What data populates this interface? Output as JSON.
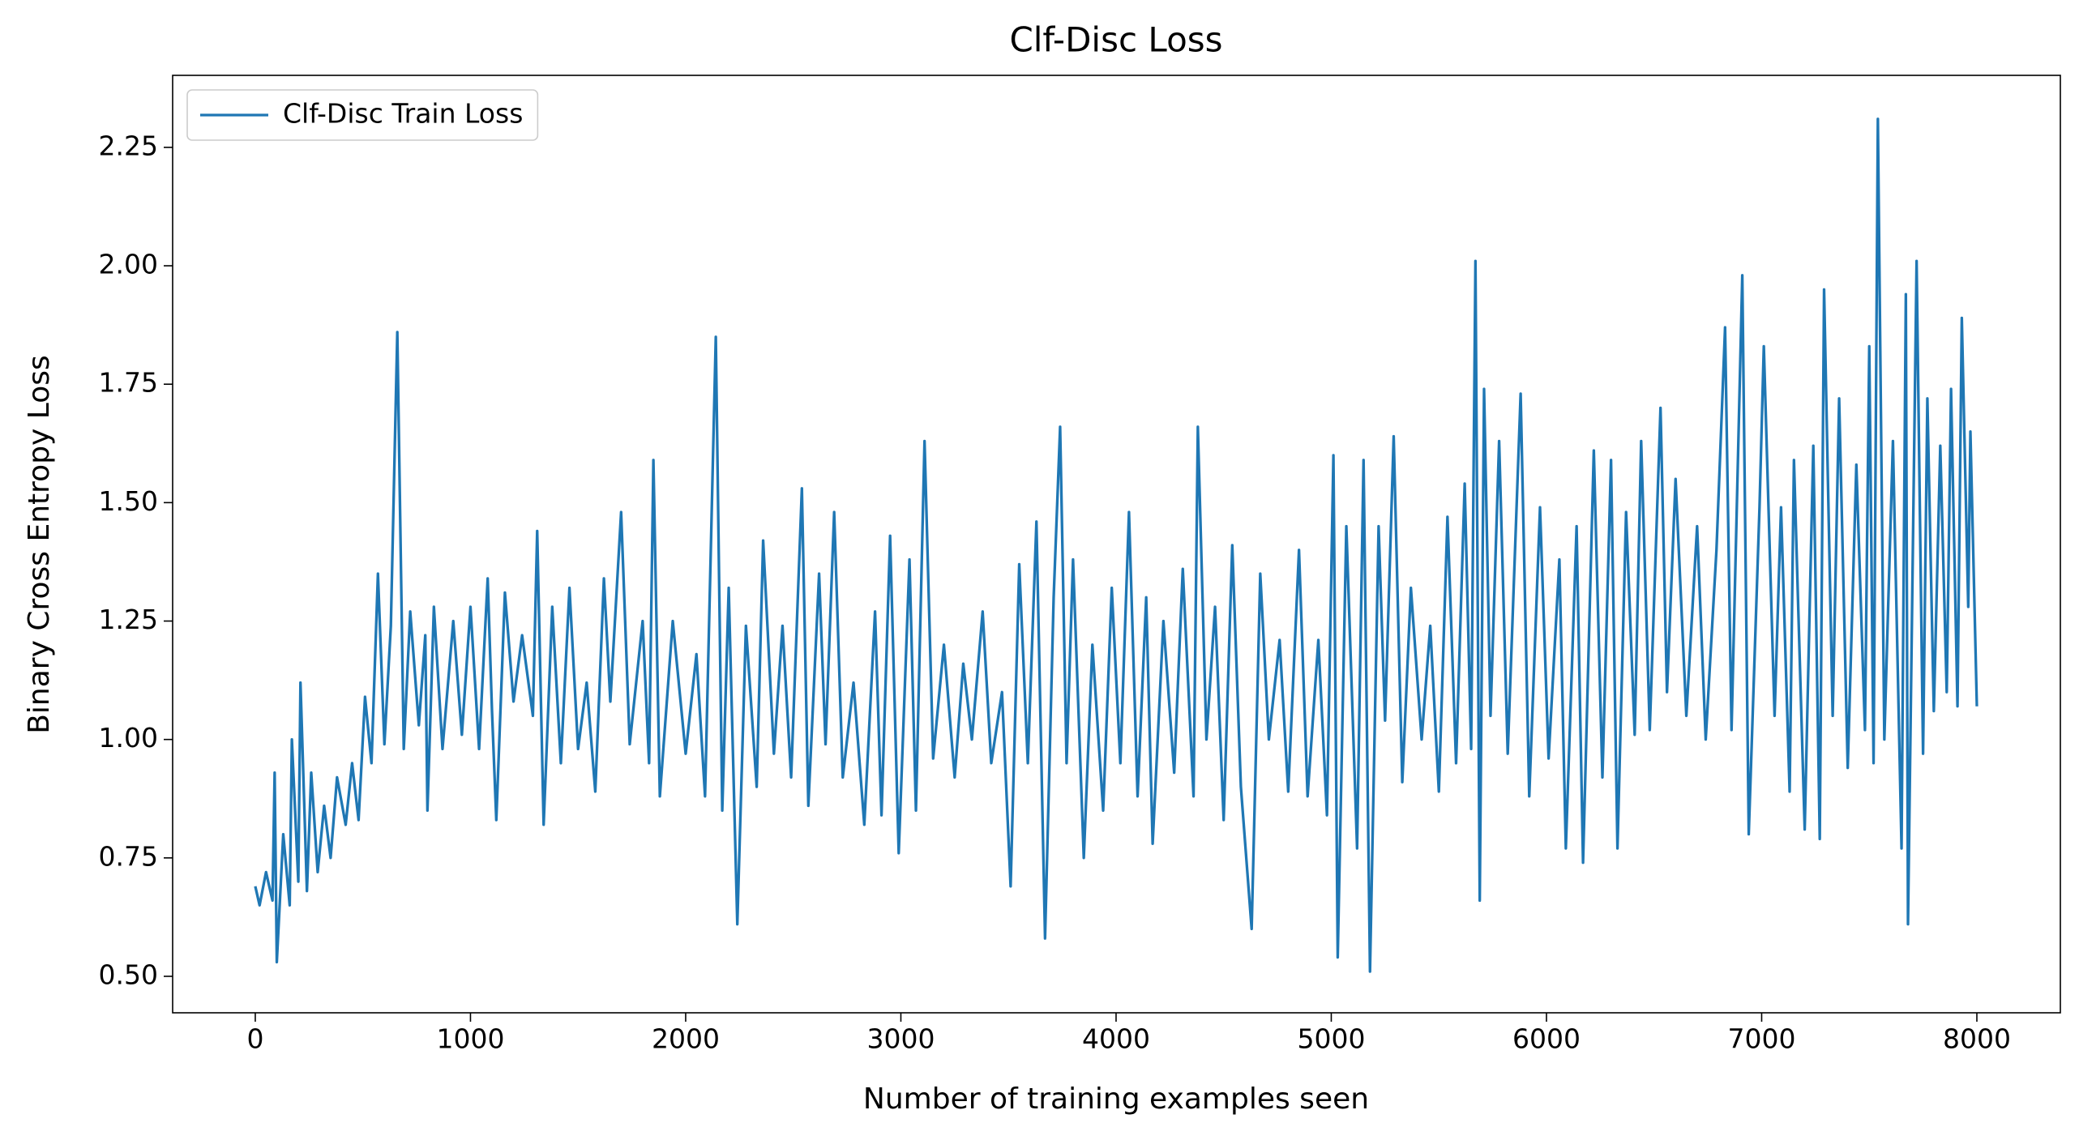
{
  "chart_data": {
    "type": "line",
    "title": "Clf-Disc Loss",
    "x_label": "Number of training examples seen",
    "y_label": "Binary Cross Entropy Loss",
    "xlim": [
      -384,
      8388
    ],
    "ylim": [
      0.423,
      2.402
    ],
    "xticks": [
      0,
      1000,
      2000,
      3000,
      4000,
      5000,
      6000,
      7000,
      8000
    ],
    "yticks": [
      {
        "value": 0.5,
        "label": "0.50"
      },
      {
        "value": 0.75,
        "label": "0.75"
      },
      {
        "value": 1.0,
        "label": "1.00"
      },
      {
        "value": 1.25,
        "label": "1.25"
      },
      {
        "value": 1.5,
        "label": "1.50"
      },
      {
        "value": 1.75,
        "label": "1.75"
      },
      {
        "value": 2.0,
        "label": "2.00"
      },
      {
        "value": 2.25,
        "label": "2.25"
      }
    ],
    "legend_position": "upper left",
    "grid": false,
    "x": [
      0,
      20,
      50,
      80,
      90,
      100,
      130,
      160,
      170,
      200,
      210,
      240,
      260,
      290,
      320,
      350,
      380,
      420,
      450,
      480,
      510,
      540,
      570,
      600,
      630,
      660,
      690,
      720,
      760,
      790,
      800,
      830,
      870,
      920,
      960,
      1000,
      1040,
      1080,
      1100,
      1120,
      1160,
      1200,
      1240,
      1290,
      1310,
      1340,
      1380,
      1420,
      1460,
      1500,
      1540,
      1580,
      1620,
      1650,
      1700,
      1740,
      1800,
      1830,
      1850,
      1880,
      1940,
      2000,
      2050,
      2090,
      2140,
      2170,
      2200,
      2240,
      2280,
      2330,
      2360,
      2410,
      2450,
      2490,
      2540,
      2570,
      2620,
      2650,
      2690,
      2730,
      2780,
      2830,
      2880,
      2910,
      2950,
      2990,
      3040,
      3070,
      3110,
      3150,
      3200,
      3250,
      3290,
      3330,
      3380,
      3420,
      3470,
      3510,
      3550,
      3590,
      3630,
      3670,
      3710,
      3740,
      3770,
      3800,
      3850,
      3890,
      3940,
      3980,
      4020,
      4060,
      4100,
      4140,
      4170,
      4220,
      4270,
      4310,
      4360,
      4380,
      4420,
      4460,
      4500,
      4540,
      4580,
      4630,
      4670,
      4710,
      4760,
      4800,
      4850,
      4890,
      4940,
      4980,
      5010,
      5030,
      5070,
      5120,
      5150,
      5180,
      5220,
      5250,
      5290,
      5330,
      5370,
      5420,
      5460,
      5500,
      5540,
      5580,
      5620,
      5650,
      5670,
      5690,
      5710,
      5740,
      5780,
      5820,
      5880,
      5920,
      5970,
      6010,
      6060,
      6090,
      6140,
      6170,
      6220,
      6260,
      6300,
      6330,
      6370,
      6410,
      6440,
      6480,
      6530,
      6560,
      6600,
      6650,
      6700,
      6740,
      6790,
      6830,
      6860,
      6910,
      6940,
      6990,
      7010,
      7060,
      7090,
      7130,
      7150,
      7200,
      7240,
      7270,
      7290,
      7330,
      7360,
      7400,
      7440,
      7480,
      7500,
      7520,
      7540,
      7570,
      7610,
      7650,
      7670,
      7680,
      7720,
      7750,
      7770,
      7800,
      7830,
      7860,
      7880,
      7910,
      7930,
      7960,
      7970,
      8000
    ],
    "series": [
      {
        "name": "Clf-Disc Train Loss",
        "color": "#1f77b4",
        "values": [
          0.69,
          0.65,
          0.72,
          0.66,
          0.93,
          0.53,
          0.8,
          0.65,
          1.0,
          0.7,
          1.12,
          0.68,
          0.93,
          0.72,
          0.86,
          0.75,
          0.92,
          0.82,
          0.95,
          0.83,
          1.09,
          0.95,
          1.35,
          0.99,
          1.24,
          1.86,
          0.98,
          1.27,
          1.03,
          1.22,
          0.85,
          1.28,
          0.98,
          1.25,
          1.01,
          1.28,
          0.98,
          1.34,
          1.06,
          0.83,
          1.31,
          1.08,
          1.22,
          1.05,
          1.44,
          0.82,
          1.28,
          0.95,
          1.32,
          0.98,
          1.12,
          0.89,
          1.34,
          1.08,
          1.48,
          0.99,
          1.25,
          0.95,
          1.59,
          0.88,
          1.25,
          0.97,
          1.18,
          0.88,
          1.85,
          0.85,
          1.32,
          0.61,
          1.24,
          0.9,
          1.42,
          0.97,
          1.24,
          0.92,
          1.53,
          0.86,
          1.35,
          0.99,
          1.48,
          0.92,
          1.12,
          0.82,
          1.27,
          0.84,
          1.43,
          0.76,
          1.38,
          0.85,
          1.63,
          0.96,
          1.2,
          0.92,
          1.16,
          1.0,
          1.27,
          0.95,
          1.1,
          0.69,
          1.37,
          0.95,
          1.46,
          0.58,
          1.3,
          1.66,
          0.95,
          1.38,
          0.75,
          1.2,
          0.85,
          1.32,
          0.95,
          1.48,
          0.88,
          1.3,
          0.78,
          1.25,
          0.93,
          1.36,
          0.88,
          1.66,
          1.0,
          1.28,
          0.83,
          1.41,
          0.9,
          0.6,
          1.35,
          1.0,
          1.21,
          0.89,
          1.4,
          0.88,
          1.21,
          0.84,
          1.6,
          0.54,
          1.45,
          0.77,
          1.59,
          0.51,
          1.45,
          1.04,
          1.64,
          0.91,
          1.32,
          1.0,
          1.24,
          0.89,
          1.47,
          0.95,
          1.54,
          0.98,
          2.01,
          0.66,
          1.74,
          1.05,
          1.63,
          0.97,
          1.73,
          0.88,
          1.49,
          0.96,
          1.38,
          0.77,
          1.45,
          0.74,
          1.61,
          0.92,
          1.59,
          0.77,
          1.48,
          1.01,
          1.63,
          1.02,
          1.7,
          1.1,
          1.55,
          1.05,
          1.45,
          1.0,
          1.4,
          1.87,
          1.02,
          1.98,
          0.8,
          1.49,
          1.83,
          1.05,
          1.49,
          0.89,
          1.59,
          0.81,
          1.62,
          0.79,
          1.95,
          1.05,
          1.72,
          0.94,
          1.58,
          1.02,
          1.83,
          0.95,
          2.31,
          1.0,
          1.63,
          0.77,
          1.94,
          0.61,
          2.01,
          0.97,
          1.72,
          1.06,
          1.62,
          1.1,
          1.74,
          1.07,
          1.89,
          1.28,
          1.65,
          1.07
        ]
      }
    ]
  }
}
